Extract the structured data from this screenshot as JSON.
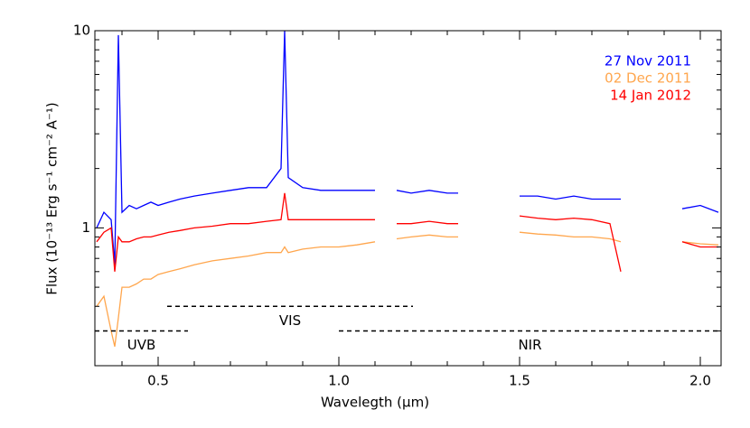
{
  "chart_data": {
    "type": "line",
    "x_label": "Wavelegth (µm)",
    "y_label": "Flux (10⁻¹³ Erg s⁻¹ cm⁻² A⁻¹)",
    "log_y": true,
    "xlim": [
      0.325,
      2.0575
    ],
    "ylim": [
      0.2,
      10
    ],
    "xticks": [
      {
        "value": 0.5,
        "label": "0.5"
      },
      {
        "value": 1,
        "label": "1.0"
      },
      {
        "value": 1.5,
        "label": "1.5"
      },
      {
        "value": 2,
        "label": "2.0"
      }
    ],
    "xminorticks": [
      0.4,
      0.6,
      0.7,
      0.8,
      0.9,
      1.1,
      1.2,
      1.3,
      1.4,
      1.6,
      1.7,
      1.8,
      1.9
    ],
    "yticks": [
      1,
      10
    ],
    "yminorticks": [
      0.2,
      0.3,
      0.4,
      0.5,
      0.6,
      0.7,
      0.8,
      0.9,
      2,
      3,
      4,
      5,
      6,
      7,
      8,
      9
    ],
    "legend": "upper right",
    "x": [
      0.33,
      0.35,
      0.37,
      0.38,
      0.39,
      0.4,
      0.42,
      0.44,
      0.46,
      0.48,
      0.5,
      0.53,
      0.56,
      0.6,
      0.65,
      0.7,
      0.75,
      0.8,
      0.84,
      0.85,
      0.86,
      0.9,
      0.95,
      1.0,
      1.05,
      1.1,
      1.13,
      1.16,
      1.2,
      1.25,
      1.3,
      1.33,
      1.4,
      1.5,
      1.55,
      1.6,
      1.65,
      1.7,
      1.75,
      1.78,
      1.85,
      1.95,
      2.0,
      2.05
    ],
    "series": [
      {
        "name": "27 Nov 2011",
        "color": "#0000ff",
        "values": [
          1.0,
          1.2,
          1.1,
          0.65,
          9.5,
          1.2,
          1.3,
          1.25,
          1.3,
          1.35,
          1.3,
          1.35,
          1.4,
          1.45,
          1.5,
          1.55,
          1.6,
          1.6,
          2.0,
          10,
          1.8,
          1.6,
          1.55,
          1.55,
          1.55,
          1.55,
          null,
          1.55,
          1.5,
          1.55,
          1.5,
          1.5,
          null,
          1.45,
          1.45,
          1.4,
          1.45,
          1.4,
          1.4,
          1.4,
          null,
          1.25,
          1.3,
          1.2
        ]
      },
      {
        "name": "02 Dec 2011",
        "color": "#ffa64d",
        "values": [
          0.4,
          0.45,
          0.3,
          0.25,
          0.35,
          0.5,
          0.5,
          0.52,
          0.55,
          0.55,
          0.58,
          0.6,
          0.62,
          0.65,
          0.68,
          0.7,
          0.72,
          0.75,
          0.75,
          0.8,
          0.75,
          0.78,
          0.8,
          0.8,
          0.82,
          0.85,
          null,
          0.88,
          0.9,
          0.92,
          0.9,
          0.9,
          null,
          0.95,
          0.93,
          0.92,
          0.9,
          0.9,
          0.88,
          0.85,
          null,
          0.85,
          0.83,
          0.82
        ]
      },
      {
        "name": "14 Jan 2012",
        "color": "#ff0000",
        "values": [
          0.85,
          0.95,
          1.0,
          0.6,
          0.9,
          0.85,
          0.85,
          0.88,
          0.9,
          0.9,
          0.92,
          0.95,
          0.97,
          1.0,
          1.02,
          1.05,
          1.05,
          1.08,
          1.1,
          1.5,
          1.1,
          1.1,
          1.1,
          1.1,
          1.1,
          1.1,
          null,
          1.05,
          1.05,
          1.08,
          1.05,
          1.05,
          null,
          1.15,
          1.12,
          1.1,
          1.12,
          1.1,
          1.05,
          0.6,
          null,
          0.85,
          0.8,
          0.8
        ]
      }
    ],
    "ranges": [
      {
        "label": "UVB",
        "x": [
          0.325,
          0.5825
        ],
        "y": 0.3
      },
      {
        "label": "VIS",
        "x": [
          0.525,
          1.205
        ],
        "y": 0.4
      },
      {
        "label": "NIR",
        "x": [
          1.0,
          2.0575
        ],
        "y": 0.3
      }
    ]
  }
}
